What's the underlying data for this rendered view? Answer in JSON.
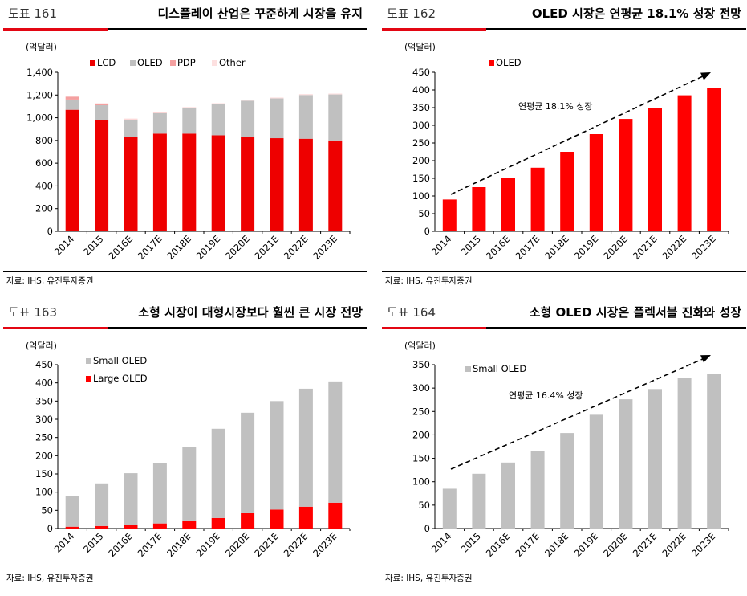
{
  "colors": {
    "red": "#ff0000",
    "lcd": "#ee0000",
    "oled_gray": "#c0c0c0",
    "pdp": "#f4a0a0",
    "other": "#fde0e0"
  },
  "source": "자료: IHS, 유진투자증권",
  "panels": [
    {
      "fig_no": "도표 161",
      "title": "디스플레이 산업은 꾸준하게 시장을 유지",
      "unit": "(억달러)",
      "chart_data": {
        "type": "bar",
        "stacked": true,
        "categories": [
          "2014",
          "2015",
          "2016E",
          "2017E",
          "2018E",
          "2019E",
          "2020E",
          "2021E",
          "2022E",
          "2023E"
        ],
        "series": [
          {
            "name": "LCD",
            "values": [
              1070,
              980,
              830,
              860,
              860,
              845,
              830,
              820,
              815,
              800
            ]
          },
          {
            "name": "OLED",
            "values": [
              90,
              130,
              150,
              180,
              225,
              275,
              320,
              350,
              385,
              405
            ]
          },
          {
            "name": "PDP",
            "values": [
              25,
              10,
              5,
              2,
              1,
              0,
              0,
              0,
              0,
              0
            ]
          },
          {
            "name": "Other",
            "values": [
              10,
              8,
              8,
              8,
              8,
              8,
              8,
              8,
              8,
              8
            ]
          }
        ],
        "ylim": [
          0,
          1400
        ],
        "yticks": [
          "0",
          "200",
          "400",
          "600",
          "800",
          "1,000",
          "1,200",
          "1,400"
        ],
        "legend": "top"
      }
    },
    {
      "fig_no": "도표 162",
      "title": "OLED 시장은 연평균 18.1% 성장 전망",
      "unit": "(억달러)",
      "chart_data": {
        "type": "bar",
        "categories": [
          "2014",
          "2015",
          "2016E",
          "2017E",
          "2018E",
          "2019E",
          "2020E",
          "2021E",
          "2022E",
          "2023E"
        ],
        "series": [
          {
            "name": "OLED",
            "values": [
              90,
              125,
              152,
              180,
              225,
              275,
              318,
              350,
              385,
              405
            ]
          }
        ],
        "ylim": [
          0,
          450
        ],
        "yticks": [
          "0",
          "50",
          "100",
          "150",
          "200",
          "250",
          "300",
          "350",
          "400",
          "450"
        ],
        "annotation": "연평균 18.1%  성장",
        "legend": "top-left"
      }
    },
    {
      "fig_no": "도표 163",
      "title": "소형 시장이 대형시장보다 훨씬 큰 시장 전망",
      "unit": "(억달러)",
      "chart_data": {
        "type": "bar",
        "stacked": true,
        "categories": [
          "2014",
          "2015",
          "2016E",
          "2017E",
          "2018E",
          "2019E",
          "2020E",
          "2021E",
          "2022E",
          "2023E"
        ],
        "series": [
          {
            "name": "Large OLED",
            "values": [
              5,
              7,
              11,
              14,
              20,
              29,
              42,
              52,
              60,
              71
            ]
          },
          {
            "name": "Small OLED",
            "values": [
              85,
              117,
              141,
              166,
              205,
              245,
              276,
              298,
              324,
              333
            ]
          }
        ],
        "ylim": [
          0,
          450
        ],
        "yticks": [
          "0",
          "50",
          "100",
          "150",
          "200",
          "250",
          "300",
          "350",
          "400",
          "450"
        ],
        "legend": "top-left"
      }
    },
    {
      "fig_no": "도표 164",
      "title": "소형 OLED 시장은 플렉서블 진화와 성장",
      "unit": "(억달러)",
      "chart_data": {
        "type": "bar",
        "categories": [
          "2014",
          "2015",
          "2016E",
          "2017E",
          "2018E",
          "2019E",
          "2020E",
          "2021E",
          "2022E",
          "2023E"
        ],
        "series": [
          {
            "name": "Small OLED",
            "values": [
              85,
              117,
              141,
              166,
              204,
              243,
              276,
              298,
              322,
              330
            ]
          }
        ],
        "ylim": [
          0,
          350
        ],
        "yticks": [
          "0",
          "50",
          "100",
          "150",
          "200",
          "250",
          "300",
          "350"
        ],
        "annotation": "연평균 16.4%  성장",
        "legend": "top-left"
      }
    }
  ]
}
